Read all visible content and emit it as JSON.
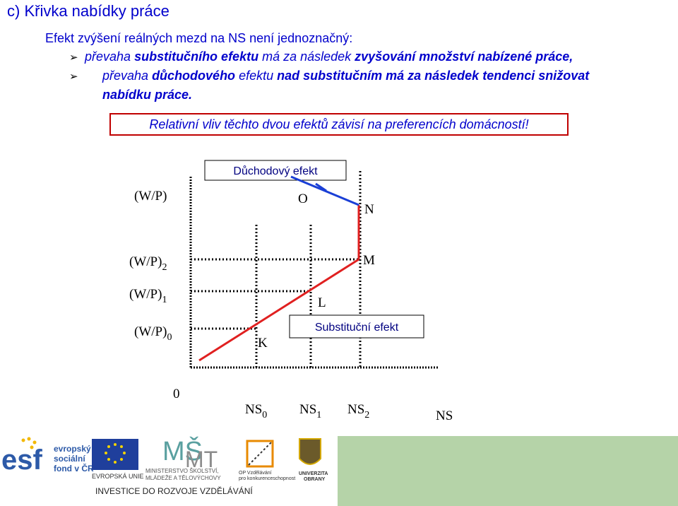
{
  "title": "c) Křivka nabídky práce",
  "intro": "Efekt zvýšení reálných mezd na NS není jednoznačný:",
  "bullet1": {
    "p1": "převaha ",
    "p2": "substitučního efektu",
    "p3": " má za následek ",
    "p4": "zvyšování množství nabízené práce,"
  },
  "bullet2": {
    "p1": "převaha ",
    "p2": "důchodového",
    "p3": " efektu",
    "p4": " nad substitučním má za následek tendenci snižovat",
    "p5": "nabídku práce."
  },
  "callout": "Relativní vliv těchto dvou efektů závisí na preferencích domácností!",
  "diagram": {
    "y_axis_label": "(W/P)",
    "x_axis_label": "NS",
    "origin_label": "0",
    "wage_levels": [
      {
        "base": "(W/P)",
        "sub": "2"
      },
      {
        "base": "(W/P)",
        "sub": "1"
      },
      {
        "base": "(W/P)",
        "sub": "0"
      }
    ],
    "quantity_levels": [
      {
        "base": "NS",
        "sub": "0"
      },
      {
        "base": "NS",
        "sub": "1"
      },
      {
        "base": "NS",
        "sub": "2"
      }
    ],
    "points": {
      "K": "K",
      "L": "L",
      "M": "M",
      "N": "N",
      "O": "O"
    },
    "income_effect_label": "Důchodový efekt",
    "substitution_effect_label": "Substituční efekt"
  },
  "footer": {
    "esf_text": [
      "evropský",
      "sociální",
      "fond v ČR"
    ],
    "eu_text": "EVROPSKÁ UNIE",
    "msmt_text": [
      "MINISTERSTVO ŠKOLSTVÍ,",
      "MLÁDEŽE A TĚLOVÝCHOVY"
    ],
    "op_text": [
      "OP Vzdělávání",
      "pro konkurenceschopnost"
    ],
    "univ_text": [
      "UNIVERZITA",
      "OBRANY"
    ],
    "investice_text": "INVESTICE DO ROZVOJE VZDĚLÁVÁNÍ"
  },
  "colors": {
    "blue": "#0000cc",
    "red": "#e02020",
    "border_red": "#c00000",
    "footer_green": "#b5d3a8"
  }
}
